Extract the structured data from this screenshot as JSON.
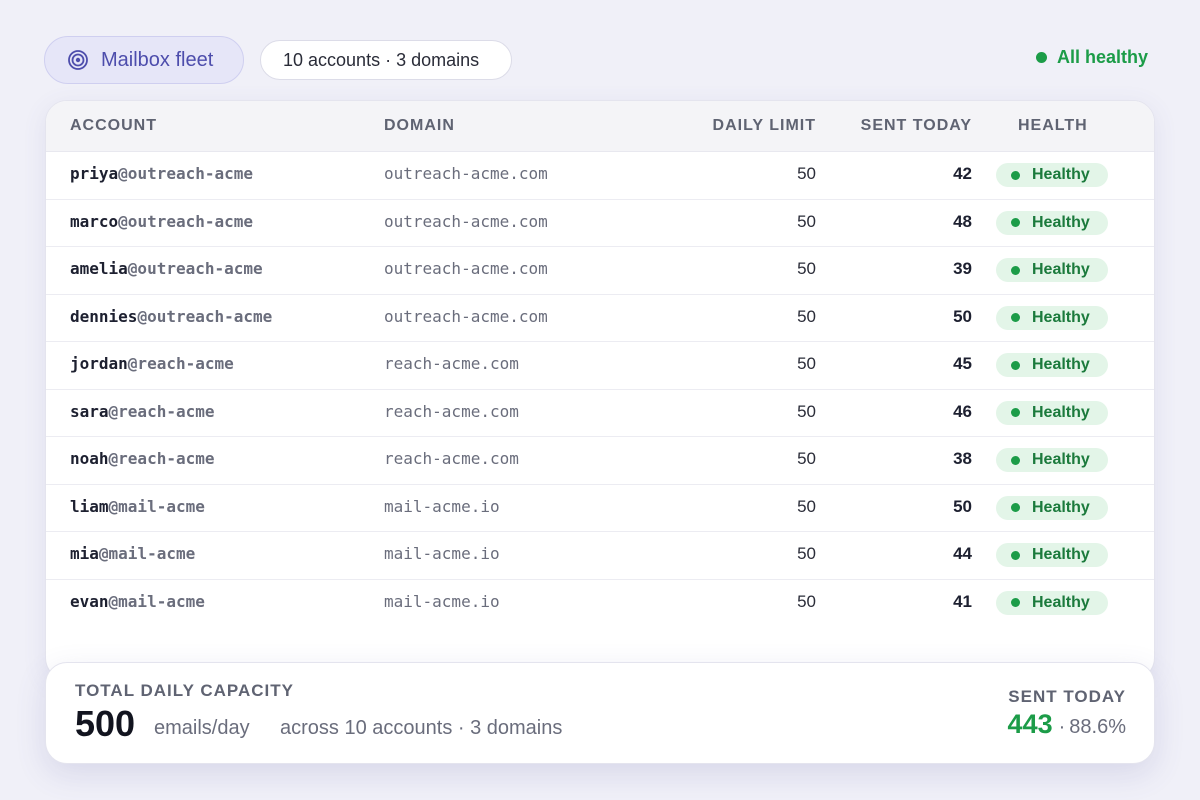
{
  "header": {
    "title": "Mailbox fleet",
    "title_icon": "target-icon",
    "summary_chip": "10 accounts · 3 domains",
    "health_status": "All healthy",
    "health_color": "#1c9c48"
  },
  "table": {
    "columns": {
      "account": "ACCOUNT",
      "domain": "DOMAIN",
      "daily_limit": "DAILY LIMIT",
      "sent_today": "SENT TODAY",
      "health": "HEALTH"
    },
    "rows": [
      {
        "user": "priya",
        "alias": "@outreach-acme",
        "domain": "outreach-acme.com",
        "limit": "50",
        "sent": "42",
        "health": "Healthy"
      },
      {
        "user": "marco",
        "alias": "@outreach-acme",
        "domain": "outreach-acme.com",
        "limit": "50",
        "sent": "48",
        "health": "Healthy"
      },
      {
        "user": "amelia",
        "alias": "@outreach-acme",
        "domain": "outreach-acme.com",
        "limit": "50",
        "sent": "39",
        "health": "Healthy"
      },
      {
        "user": "dennies",
        "alias": "@outreach-acme",
        "domain": "outreach-acme.com",
        "limit": "50",
        "sent": "50",
        "health": "Healthy"
      },
      {
        "user": "jordan",
        "alias": "@reach-acme",
        "domain": "reach-acme.com",
        "limit": "50",
        "sent": "45",
        "health": "Healthy"
      },
      {
        "user": "sara",
        "alias": "@reach-acme",
        "domain": "reach-acme.com",
        "limit": "50",
        "sent": "46",
        "health": "Healthy"
      },
      {
        "user": "noah",
        "alias": "@reach-acme",
        "domain": "reach-acme.com",
        "limit": "50",
        "sent": "38",
        "health": "Healthy"
      },
      {
        "user": "liam",
        "alias": "@mail-acme",
        "domain": "mail-acme.io",
        "limit": "50",
        "sent": "50",
        "health": "Healthy"
      },
      {
        "user": "mia",
        "alias": "@mail-acme",
        "domain": "mail-acme.io",
        "limit": "50",
        "sent": "44",
        "health": "Healthy"
      },
      {
        "user": "evan",
        "alias": "@mail-acme",
        "domain": "mail-acme.io",
        "limit": "50",
        "sent": "41",
        "health": "Healthy"
      }
    ]
  },
  "summary": {
    "capacity_label": "TOTAL DAILY CAPACITY",
    "capacity_value": "500",
    "capacity_unit": "emails/day",
    "capacity_scope": "across 10 accounts · 3 domains",
    "sent_label": "SENT TODAY",
    "sent_value": "443",
    "sent_separator": "·",
    "sent_percent": "88.6%"
  }
}
